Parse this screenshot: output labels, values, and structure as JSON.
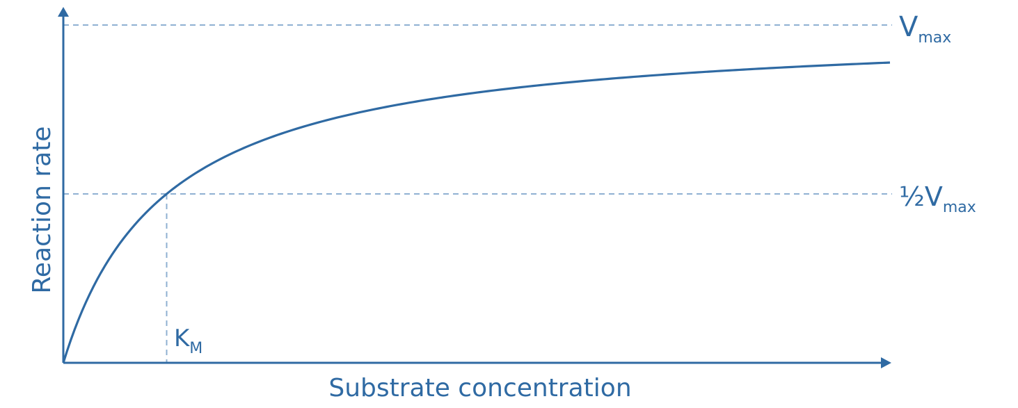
{
  "colors": {
    "axis": "#2f6aa3",
    "curve": "#2f6aa3",
    "guide": "#8fb0d2",
    "text": "#2f6aa3"
  },
  "labels": {
    "y_axis": "Reaction rate",
    "x_axis": "Substrate concentration",
    "vmax_main": "V",
    "vmax_sub": "max",
    "half_vmax_prefix": "½V",
    "half_vmax_sub": "max",
    "km_main": "K",
    "km_sub": "M"
  },
  "chart_data": {
    "type": "line",
    "title": "",
    "xlabel": "Substrate concentration",
    "ylabel": "Reaction rate",
    "series": [
      {
        "x": [
          0,
          0.25,
          0.5,
          1,
          1.5,
          2,
          3,
          4,
          5,
          6,
          7,
          8
        ],
        "y": [
          0,
          0.2,
          0.333,
          0.5,
          0.6,
          0.667,
          0.75,
          0.8,
          0.833,
          0.857,
          0.875,
          0.889
        ]
      }
    ],
    "reference_lines": [
      {
        "axis": "y",
        "value": 1,
        "label": "Vmax"
      },
      {
        "axis": "y",
        "value": 0.5,
        "label": "½Vmax"
      },
      {
        "axis": "x",
        "value": 1,
        "label": "KM"
      }
    ],
    "xlim": [
      0,
      8
    ],
    "ylim": [
      0,
      1
    ],
    "grid": false,
    "legend": "none"
  }
}
